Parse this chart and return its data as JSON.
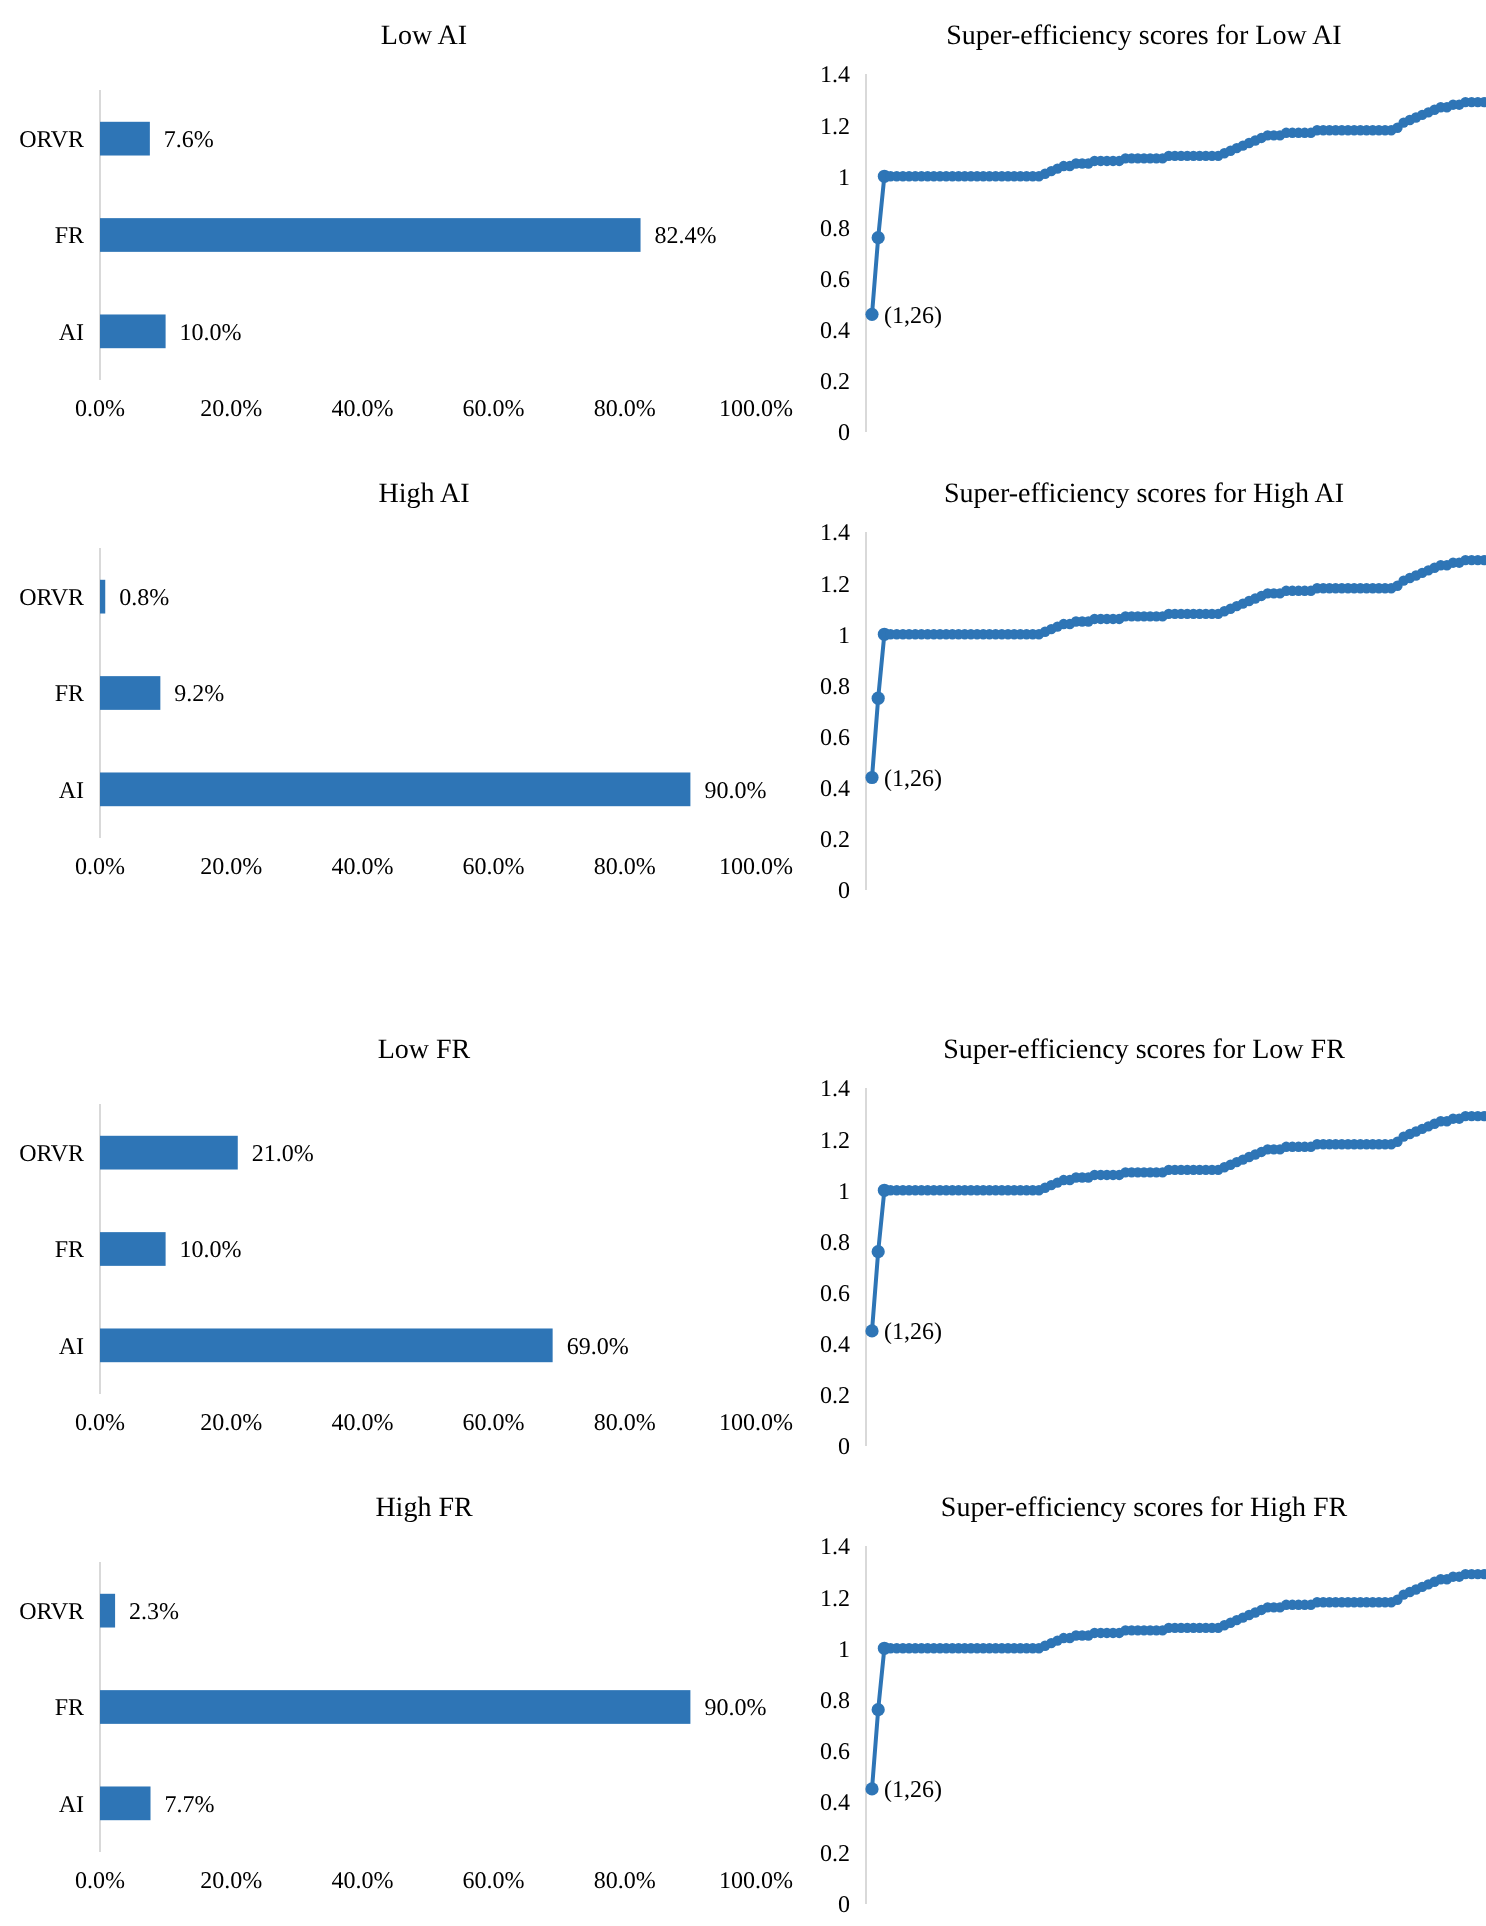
{
  "chart_data": [
    {
      "type": "bar",
      "title": "Low AI",
      "orientation": "horizontal",
      "categories": [
        "ORVR",
        "FR",
        "AI"
      ],
      "values": [
        7.6,
        82.4,
        10.0
      ],
      "value_labels": [
        "7.6%",
        "82.4%",
        "10.0%"
      ],
      "color": "#2e75b6",
      "xlim": [
        0,
        100
      ],
      "xticks": [
        {
          "value": 0,
          "label": "0.0%"
        },
        {
          "value": 20,
          "label": "20.0%"
        },
        {
          "value": 40,
          "label": "40.0%"
        },
        {
          "value": 60,
          "label": "60.0%"
        },
        {
          "value": 80,
          "label": "80.0%"
        },
        {
          "value": 100,
          "label": "100.0%"
        }
      ],
      "grid": false
    },
    {
      "type": "line",
      "title": "Super-efficiency scores for Low AI",
      "categories": [
        null,
        null,
        null,
        null,
        null,
        null,
        null,
        null,
        null,
        null,
        null,
        null,
        null,
        null,
        null,
        null,
        null,
        null,
        null,
        null,
        null,
        null,
        null,
        null,
        null,
        null,
        null,
        null,
        null,
        null,
        null,
        null,
        null,
        null,
        null,
        null,
        null,
        null,
        null,
        null,
        null,
        null,
        null,
        null,
        null,
        null,
        null,
        null,
        null,
        null,
        null,
        null,
        null,
        null,
        null,
        null,
        null,
        null,
        null,
        null,
        null,
        null,
        null,
        null,
        null,
        null,
        null,
        null,
        null,
        null,
        null,
        null,
        null,
        null,
        null,
        null,
        null,
        null,
        null,
        null,
        null,
        null,
        null,
        null,
        null,
        null,
        null,
        null,
        null,
        null,
        null,
        null,
        null,
        null,
        null,
        null,
        null,
        null,
        null,
        null
      ],
      "series": [
        {
          "color": "#2e75b6",
          "values": [
            0.46,
            0.76,
            1.0,
            1.0,
            1.0,
            1.0,
            1.0,
            1.0,
            1.0,
            1.0,
            1.0,
            1.0,
            1.0,
            1.0,
            1.0,
            1.0,
            1.0,
            1.0,
            1.0,
            1.0,
            1.0,
            1.0,
            1.0,
            1.0,
            1.0,
            1.0,
            1.0,
            1.0,
            1.01,
            1.02,
            1.03,
            1.04,
            1.04,
            1.05,
            1.05,
            1.05,
            1.06,
            1.06,
            1.06,
            1.06,
            1.06,
            1.07,
            1.07,
            1.07,
            1.07,
            1.07,
            1.07,
            1.07,
            1.08,
            1.08,
            1.08,
            1.08,
            1.08,
            1.08,
            1.08,
            1.08,
            1.08,
            1.09,
            1.1,
            1.11,
            1.12,
            1.13,
            1.14,
            1.15,
            1.16,
            1.16,
            1.16,
            1.17,
            1.17,
            1.17,
            1.17,
            1.17,
            1.18,
            1.18,
            1.18,
            1.18,
            1.18,
            1.18,
            1.18,
            1.18,
            1.18,
            1.18,
            1.18,
            1.18,
            1.18,
            1.19,
            1.21,
            1.22,
            1.23,
            1.24,
            1.25,
            1.26,
            1.27,
            1.27,
            1.28,
            1.28,
            1.29,
            1.29,
            1.29,
            1.29
          ]
        }
      ],
      "ylim": [
        0,
        1.4
      ],
      "yticks": [
        0,
        0.2,
        0.4,
        0.6,
        0.8,
        1,
        1.2,
        1.4
      ],
      "marker": "circle",
      "line_style": "solid",
      "tick_labels": "y",
      "grid": false,
      "annotations": [
        "(1,26)"
      ]
    },
    {
      "type": "bar",
      "title": "High AI",
      "orientation": "horizontal",
      "categories": [
        "ORVR",
        "FR",
        "AI"
      ],
      "values": [
        0.8,
        9.2,
        90.0
      ],
      "value_labels": [
        "0.8%",
        "9.2%",
        "90.0%"
      ],
      "color": "#2e75b6",
      "xlim": [
        0,
        100
      ],
      "xticks": [
        {
          "value": 0,
          "label": "0.0%"
        },
        {
          "value": 20,
          "label": "20.0%"
        },
        {
          "value": 40,
          "label": "40.0%"
        },
        {
          "value": 60,
          "label": "60.0%"
        },
        {
          "value": 80,
          "label": "80.0%"
        },
        {
          "value": 100,
          "label": "100.0%"
        }
      ],
      "grid": false
    },
    {
      "type": "line",
      "title": "Super-efficiency scores for High AI",
      "categories": [
        null,
        null,
        null,
        null,
        null,
        null,
        null,
        null,
        null,
        null,
        null,
        null,
        null,
        null,
        null,
        null,
        null,
        null,
        null,
        null,
        null,
        null,
        null,
        null,
        null,
        null,
        null,
        null,
        null,
        null,
        null,
        null,
        null,
        null,
        null,
        null,
        null,
        null,
        null,
        null,
        null,
        null,
        null,
        null,
        null,
        null,
        null,
        null,
        null,
        null,
        null,
        null,
        null,
        null,
        null,
        null,
        null,
        null,
        null,
        null,
        null,
        null,
        null,
        null,
        null,
        null,
        null,
        null,
        null,
        null,
        null,
        null,
        null,
        null,
        null,
        null,
        null,
        null,
        null,
        null,
        null,
        null,
        null,
        null,
        null,
        null,
        null,
        null,
        null,
        null,
        null,
        null,
        null,
        null,
        null,
        null,
        null,
        null,
        null,
        null
      ],
      "series": [
        {
          "color": "#2e75b6",
          "values": [
            0.44,
            0.75,
            1.0,
            1.0,
            1.0,
            1.0,
            1.0,
            1.0,
            1.0,
            1.0,
            1.0,
            1.0,
            1.0,
            1.0,
            1.0,
            1.0,
            1.0,
            1.0,
            1.0,
            1.0,
            1.0,
            1.0,
            1.0,
            1.0,
            1.0,
            1.0,
            1.0,
            1.0,
            1.01,
            1.02,
            1.03,
            1.04,
            1.04,
            1.05,
            1.05,
            1.05,
            1.06,
            1.06,
            1.06,
            1.06,
            1.06,
            1.07,
            1.07,
            1.07,
            1.07,
            1.07,
            1.07,
            1.07,
            1.08,
            1.08,
            1.08,
            1.08,
            1.08,
            1.08,
            1.08,
            1.08,
            1.08,
            1.09,
            1.1,
            1.11,
            1.12,
            1.13,
            1.14,
            1.15,
            1.16,
            1.16,
            1.16,
            1.17,
            1.17,
            1.17,
            1.17,
            1.17,
            1.18,
            1.18,
            1.18,
            1.18,
            1.18,
            1.18,
            1.18,
            1.18,
            1.18,
            1.18,
            1.18,
            1.18,
            1.18,
            1.19,
            1.21,
            1.22,
            1.23,
            1.24,
            1.25,
            1.26,
            1.27,
            1.27,
            1.28,
            1.28,
            1.29,
            1.29,
            1.29,
            1.29
          ]
        }
      ],
      "ylim": [
        0,
        1.4
      ],
      "yticks": [
        0,
        0.2,
        0.4,
        0.6,
        0.8,
        1,
        1.2,
        1.4
      ],
      "marker": "circle",
      "line_style": "solid",
      "tick_labels": "y",
      "grid": false,
      "annotations": [
        "(1,26)"
      ]
    },
    {
      "type": "bar",
      "title": "Low FR",
      "orientation": "horizontal",
      "categories": [
        "ORVR",
        "FR",
        "AI"
      ],
      "values": [
        21.0,
        10.0,
        69.0
      ],
      "value_labels": [
        "21.0%",
        "10.0%",
        "69.0%"
      ],
      "color": "#2e75b6",
      "xlim": [
        0,
        100
      ],
      "xticks": [
        {
          "value": 0,
          "label": "0.0%"
        },
        {
          "value": 20,
          "label": "20.0%"
        },
        {
          "value": 40,
          "label": "40.0%"
        },
        {
          "value": 60,
          "label": "60.0%"
        },
        {
          "value": 80,
          "label": "80.0%"
        },
        {
          "value": 100,
          "label": "100.0%"
        }
      ],
      "grid": false
    },
    {
      "type": "line",
      "title": "Super-efficiency scores for Low FR",
      "categories": [
        null,
        null,
        null,
        null,
        null,
        null,
        null,
        null,
        null,
        null,
        null,
        null,
        null,
        null,
        null,
        null,
        null,
        null,
        null,
        null,
        null,
        null,
        null,
        null,
        null,
        null,
        null,
        null,
        null,
        null,
        null,
        null,
        null,
        null,
        null,
        null,
        null,
        null,
        null,
        null,
        null,
        null,
        null,
        null,
        null,
        null,
        null,
        null,
        null,
        null,
        null,
        null,
        null,
        null,
        null,
        null,
        null,
        null,
        null,
        null,
        null,
        null,
        null,
        null,
        null,
        null,
        null,
        null,
        null,
        null,
        null,
        null,
        null,
        null,
        null,
        null,
        null,
        null,
        null,
        null,
        null,
        null,
        null,
        null,
        null,
        null,
        null,
        null,
        null,
        null,
        null,
        null,
        null,
        null,
        null,
        null,
        null,
        null,
        null,
        null
      ],
      "series": [
        {
          "color": "#2e75b6",
          "values": [
            0.45,
            0.76,
            1.0,
            1.0,
            1.0,
            1.0,
            1.0,
            1.0,
            1.0,
            1.0,
            1.0,
            1.0,
            1.0,
            1.0,
            1.0,
            1.0,
            1.0,
            1.0,
            1.0,
            1.0,
            1.0,
            1.0,
            1.0,
            1.0,
            1.0,
            1.0,
            1.0,
            1.0,
            1.01,
            1.02,
            1.03,
            1.04,
            1.04,
            1.05,
            1.05,
            1.05,
            1.06,
            1.06,
            1.06,
            1.06,
            1.06,
            1.07,
            1.07,
            1.07,
            1.07,
            1.07,
            1.07,
            1.07,
            1.08,
            1.08,
            1.08,
            1.08,
            1.08,
            1.08,
            1.08,
            1.08,
            1.08,
            1.09,
            1.1,
            1.11,
            1.12,
            1.13,
            1.14,
            1.15,
            1.16,
            1.16,
            1.16,
            1.17,
            1.17,
            1.17,
            1.17,
            1.17,
            1.18,
            1.18,
            1.18,
            1.18,
            1.18,
            1.18,
            1.18,
            1.18,
            1.18,
            1.18,
            1.18,
            1.18,
            1.18,
            1.19,
            1.21,
            1.22,
            1.23,
            1.24,
            1.25,
            1.26,
            1.27,
            1.27,
            1.28,
            1.28,
            1.29,
            1.29,
            1.29,
            1.29
          ]
        }
      ],
      "ylim": [
        0,
        1.4
      ],
      "yticks": [
        0,
        0.2,
        0.4,
        0.6,
        0.8,
        1,
        1.2,
        1.4
      ],
      "marker": "circle",
      "line_style": "solid",
      "tick_labels": "y",
      "grid": false,
      "annotations": [
        "(1,26)"
      ]
    },
    {
      "type": "bar",
      "title": "High FR",
      "orientation": "horizontal",
      "categories": [
        "ORVR",
        "FR",
        "AI"
      ],
      "values": [
        2.3,
        90.0,
        7.7
      ],
      "value_labels": [
        "2.3%",
        "90.0%",
        "7.7%"
      ],
      "color": "#2e75b6",
      "xlim": [
        0,
        100
      ],
      "xticks": [
        {
          "value": 0,
          "label": "0.0%"
        },
        {
          "value": 20,
          "label": "20.0%"
        },
        {
          "value": 40,
          "label": "40.0%"
        },
        {
          "value": 60,
          "label": "60.0%"
        },
        {
          "value": 80,
          "label": "80.0%"
        },
        {
          "value": 100,
          "label": "100.0%"
        }
      ],
      "grid": false
    },
    {
      "type": "line",
      "title": "Super-efficiency scores for High FR",
      "categories": [
        null,
        null,
        null,
        null,
        null,
        null,
        null,
        null,
        null,
        null,
        null,
        null,
        null,
        null,
        null,
        null,
        null,
        null,
        null,
        null,
        null,
        null,
        null,
        null,
        null,
        null,
        null,
        null,
        null,
        null,
        null,
        null,
        null,
        null,
        null,
        null,
        null,
        null,
        null,
        null,
        null,
        null,
        null,
        null,
        null,
        null,
        null,
        null,
        null,
        null,
        null,
        null,
        null,
        null,
        null,
        null,
        null,
        null,
        null,
        null,
        null,
        null,
        null,
        null,
        null,
        null,
        null,
        null,
        null,
        null,
        null,
        null,
        null,
        null,
        null,
        null,
        null,
        null,
        null,
        null,
        null,
        null,
        null,
        null,
        null,
        null,
        null,
        null,
        null,
        null,
        null,
        null,
        null,
        null,
        null,
        null,
        null,
        null,
        null,
        null
      ],
      "series": [
        {
          "color": "#2e75b6",
          "values": [
            0.45,
            0.76,
            1.0,
            1.0,
            1.0,
            1.0,
            1.0,
            1.0,
            1.0,
            1.0,
            1.0,
            1.0,
            1.0,
            1.0,
            1.0,
            1.0,
            1.0,
            1.0,
            1.0,
            1.0,
            1.0,
            1.0,
            1.0,
            1.0,
            1.0,
            1.0,
            1.0,
            1.0,
            1.01,
            1.02,
            1.03,
            1.04,
            1.04,
            1.05,
            1.05,
            1.05,
            1.06,
            1.06,
            1.06,
            1.06,
            1.06,
            1.07,
            1.07,
            1.07,
            1.07,
            1.07,
            1.07,
            1.07,
            1.08,
            1.08,
            1.08,
            1.08,
            1.08,
            1.08,
            1.08,
            1.08,
            1.08,
            1.09,
            1.1,
            1.11,
            1.12,
            1.13,
            1.14,
            1.15,
            1.16,
            1.16,
            1.16,
            1.17,
            1.17,
            1.17,
            1.17,
            1.17,
            1.18,
            1.18,
            1.18,
            1.18,
            1.18,
            1.18,
            1.18,
            1.18,
            1.18,
            1.18,
            1.18,
            1.18,
            1.18,
            1.19,
            1.21,
            1.22,
            1.23,
            1.24,
            1.25,
            1.26,
            1.27,
            1.27,
            1.28,
            1.28,
            1.29,
            1.29,
            1.29,
            1.29
          ]
        }
      ],
      "ylim": [
        0,
        1.4
      ],
      "yticks": [
        0,
        0.2,
        0.4,
        0.6,
        0.8,
        1,
        1.2,
        1.4
      ],
      "marker": "circle",
      "line_style": "solid",
      "tick_labels": "y",
      "grid": false,
      "annotations": [
        "(1,26)"
      ]
    }
  ]
}
